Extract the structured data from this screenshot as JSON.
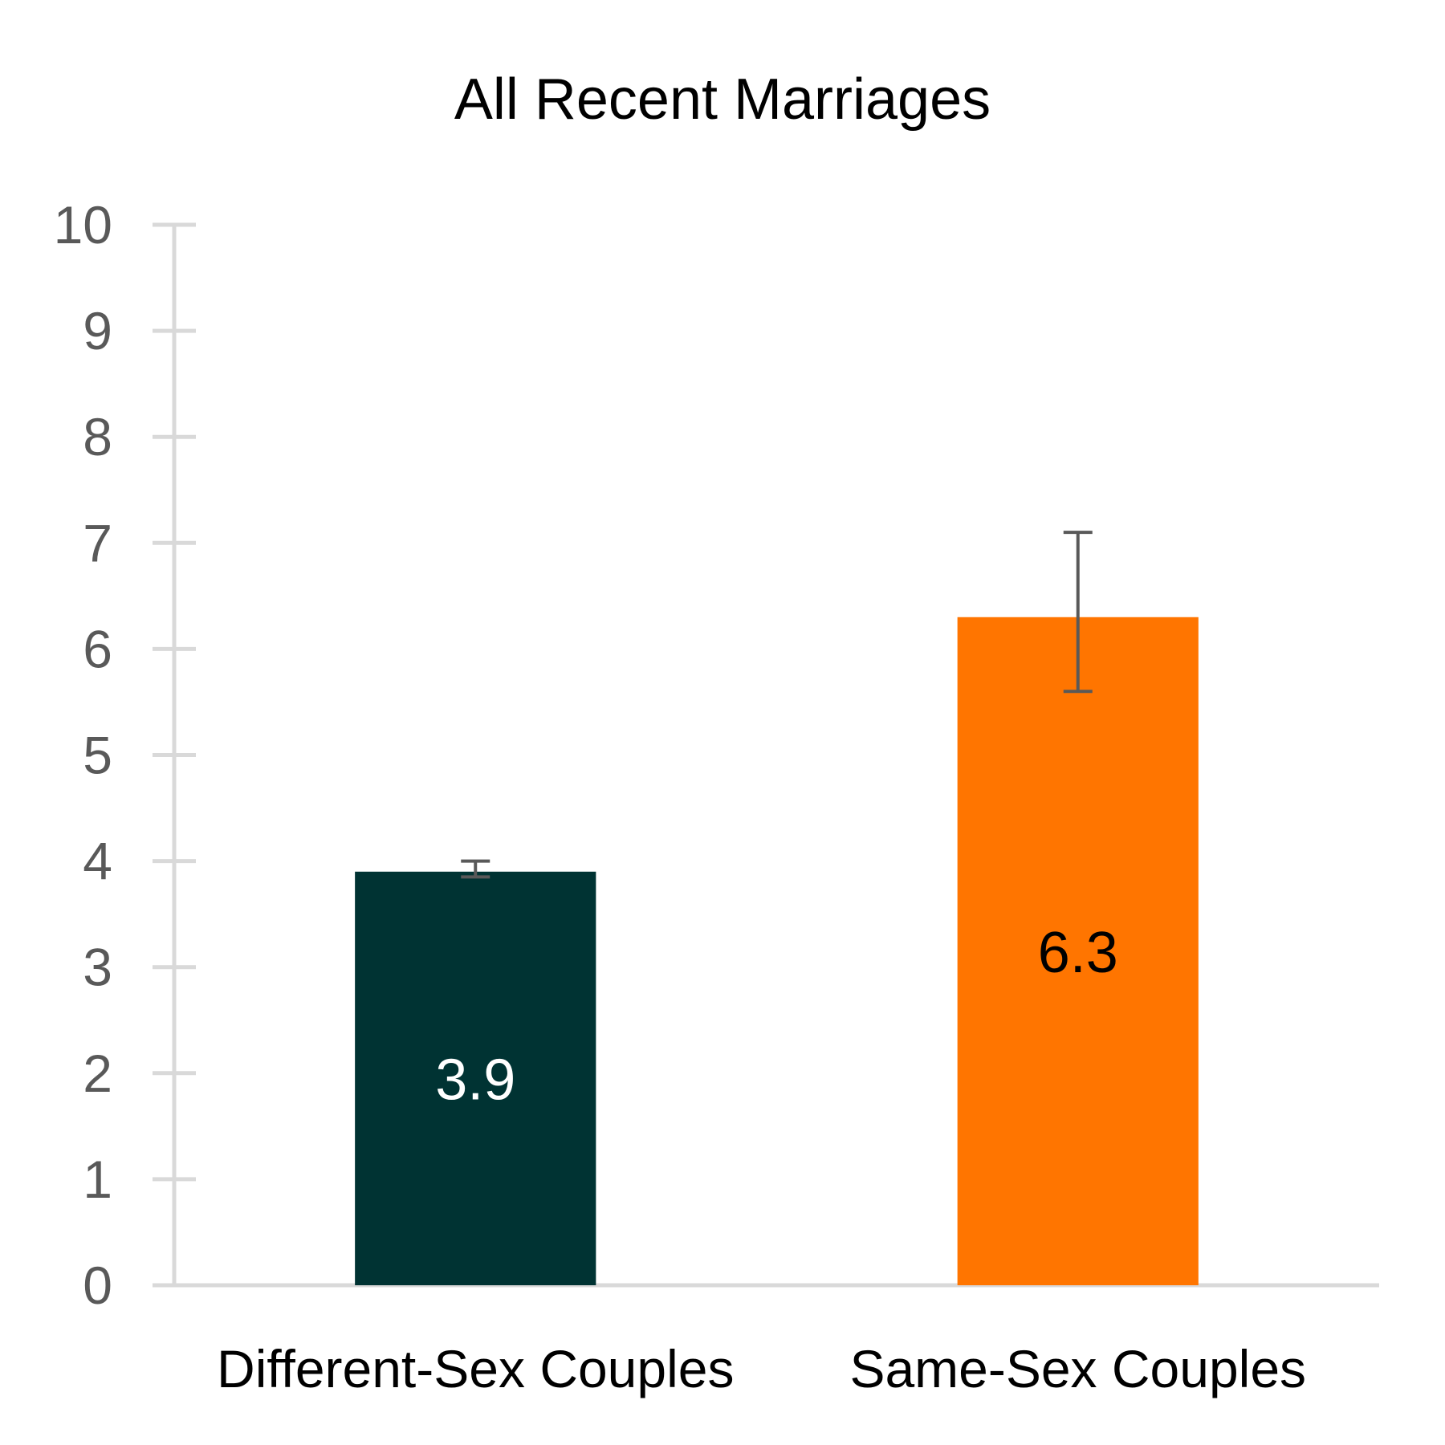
{
  "chart_data": {
    "type": "bar",
    "title": "All Recent Marriages",
    "xlabel": "",
    "ylabel": "",
    "ylim": [
      0,
      10
    ],
    "yticks": [
      "0",
      "1",
      "2",
      "3",
      "4",
      "5",
      "6",
      "7",
      "8",
      "9",
      "10"
    ],
    "categories": [
      "Different-Sex Couples",
      "Same-Sex Couples"
    ],
    "values": [
      3.9,
      6.3
    ],
    "data_labels": [
      "3.9",
      "6.3"
    ],
    "error_bars": [
      {
        "low": 3.85,
        "high": 4.0
      },
      {
        "low": 5.6,
        "high": 7.1
      }
    ],
    "bar_colors": [
      "#003333",
      "#FF7500"
    ],
    "label_colors": [
      "#FFFFFF",
      "#000000"
    ],
    "axis_color": "#D9D9D9",
    "errorbar_color": "#595959",
    "grid": false,
    "legend": "none"
  }
}
